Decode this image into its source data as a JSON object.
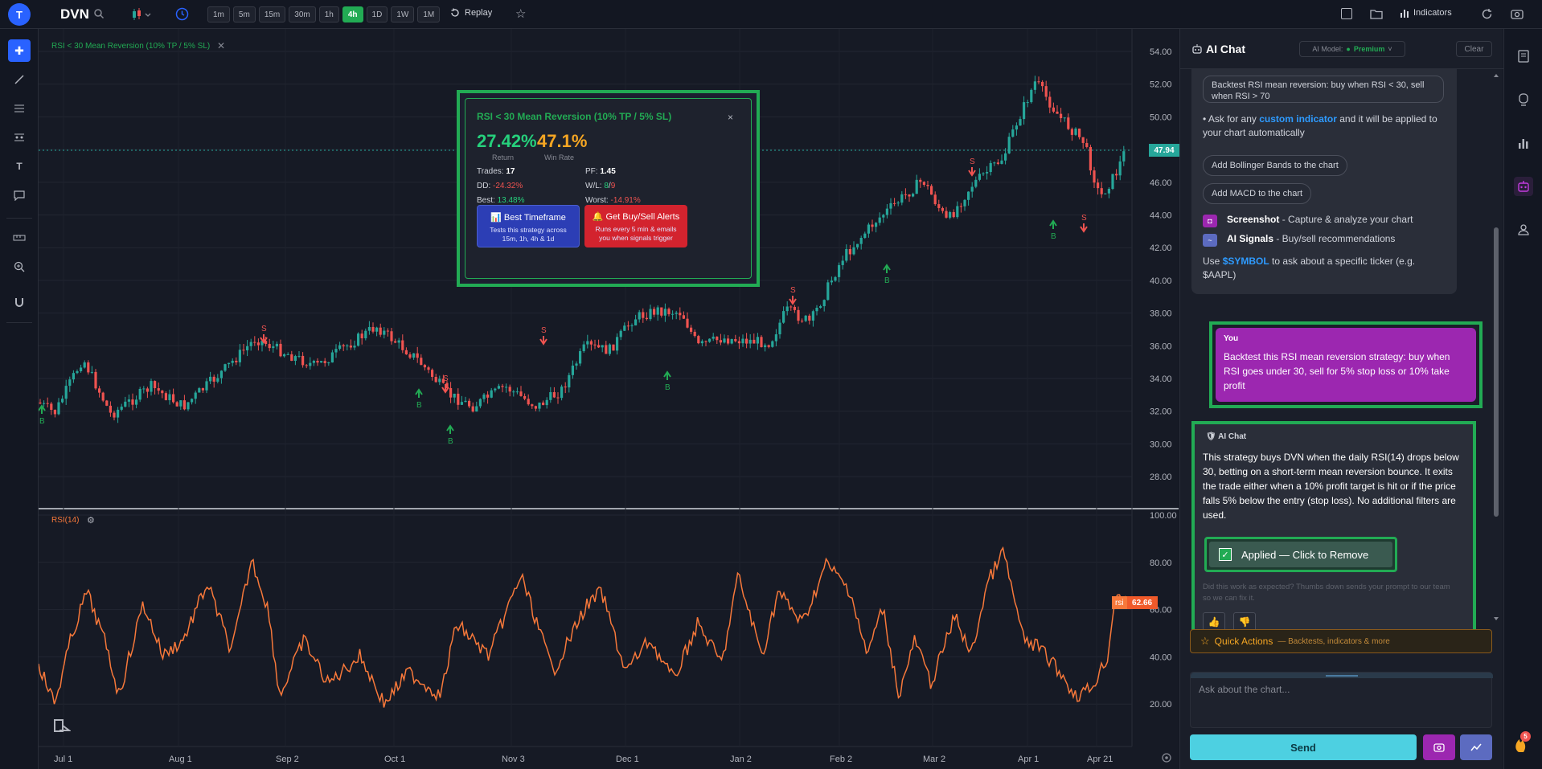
{
  "topbar": {
    "avatar_letter": "T",
    "symbol": "DVN",
    "timeframes": [
      "1m",
      "5m",
      "15m",
      "30m",
      "1h",
      "4h",
      "1D",
      "1W",
      "1M"
    ],
    "active_timeframe": "4h",
    "replay_label": "Replay",
    "indicators_label": "Indicators",
    "icons": [
      "search-icon",
      "candlestick-icon",
      "chevron-down-icon",
      "clock-icon",
      "replay-icon",
      "star-icon",
      "square-icon",
      "folder-icon",
      "bar-chart-icon",
      "refresh-icon",
      "camera-icon"
    ]
  },
  "left_toolbar": {
    "icons": [
      "crosshair-icon",
      "trendline-icon",
      "horizontal-lines-icon",
      "fib-icon",
      "text-icon",
      "comment-icon",
      "ruler-icon",
      "zoom-in-icon",
      "magnet-icon"
    ]
  },
  "chart": {
    "strategy_label": "RSI < 30 Mean Reversion (10% TP / 5% SL)",
    "last_price": "47.94",
    "price_ticks": [
      "54.00",
      "52.00",
      "50.00",
      "48.00",
      "46.00",
      "44.00",
      "42.00",
      "40.00",
      "38.00",
      "36.00",
      "34.00",
      "32.00",
      "30.00",
      "28.00"
    ],
    "rsi_label": "RSI(14)",
    "rsi_ticks": [
      "100.00",
      "80.00",
      "60.00",
      "40.00",
      "20.00"
    ],
    "rsi_series_tag": "rsi",
    "rsi_value": "62.66",
    "date_ticks": [
      "Jul 1",
      "Aug 1",
      "Sep 2",
      "Oct 1",
      "Nov 3",
      "Dec 1",
      "Jan 2",
      "Feb 2",
      "Mar 2",
      "Apr 1",
      "Apr 21"
    ],
    "buy_marker": "B",
    "sell_marker": "S",
    "colors": {
      "up": "#26a69a",
      "down": "#ef5350",
      "rsi": "#f7783a",
      "accent": "#22ab54"
    }
  },
  "popup": {
    "title": "RSI < 30 Mean Reversion (10% TP / 5% SL)",
    "return_value": "27.42%",
    "return_label": "Return",
    "winrate_value": "47.1%",
    "winrate_label": "Win Rate",
    "trades_label": "Trades:",
    "trades_value": "17",
    "pf_label": "PF:",
    "pf_value": "1.45",
    "dd_label": "DD:",
    "dd_value": "-24.32%",
    "wl_label": "W/L:",
    "wl_wins": "8",
    "wl_sep": "/",
    "wl_losses": "9",
    "best_label": "Best:",
    "best_value": "13.48%",
    "worst_label": "Worst:",
    "worst_value": "-14.91%",
    "btn1_title": "Best Timeframe",
    "btn1_sub": "Tests this strategy across 15m, 1h, 4h & 1d",
    "btn2_title": "Get Buy/Sell Alerts",
    "btn2_sub": "Runs every 5 min & emails you when signals trigger",
    "btn1_icon": "📊",
    "btn2_icon": "🔔",
    "close": "×"
  },
  "ai_panel": {
    "title": "AI Chat",
    "model_label": "AI Model:",
    "model_value": "Premium",
    "clear_label": "Clear",
    "quote_text": "Backtest RSI mean reversion: buy when RSI < 30, sell when RSI > 70",
    "custom_prefix": "• Ask for any ",
    "custom_link": "custom indicator",
    "custom_suffix": " and it will be applied to your chart automatically",
    "chip1": "Add Bollinger Bands to the chart",
    "chip2": "Add MACD to the chart",
    "feat1_title": "Screenshot",
    "feat1_desc": " - Capture & analyze your chart",
    "feat2_title": "AI Signals",
    "feat2_desc": " - Buy/sell recommendations",
    "use_prefix": "Use ",
    "use_symbol": "$SYMBOL",
    "use_suffix": " to ask about a specific ticker (e.g. $AAPL)",
    "user_who": "You",
    "user_msg": "Backtest this RSI mean reversion strategy: buy when RSI goes under 30, sell for 5% stop loss or 10% take profit",
    "ai_who": "AI Chat",
    "ai_msg": "This strategy buys DVN when the daily RSI(14) drops below 30, betting on a short-term mean reversion bounce. It exits the trade either when a 10% profit target is hit or if the price falls 5% below the entry (stop loss). No additional filters are used.",
    "applied_label": "Applied — Click to Remove",
    "feedback_note": "Did this work as expected? Thumbs down sends your prompt to our team so we can fix it.",
    "quick_actions_title": "Quick Actions",
    "quick_actions_sub": "— Backtests, indicators & more",
    "input_placeholder": "Ask about the chart...",
    "send_label": "Send"
  },
  "far_right": {
    "icons": [
      "notes-icon",
      "alert-icon",
      "bar-chart-icon",
      "robot-icon",
      "community-icon"
    ],
    "badge_count": "5"
  }
}
